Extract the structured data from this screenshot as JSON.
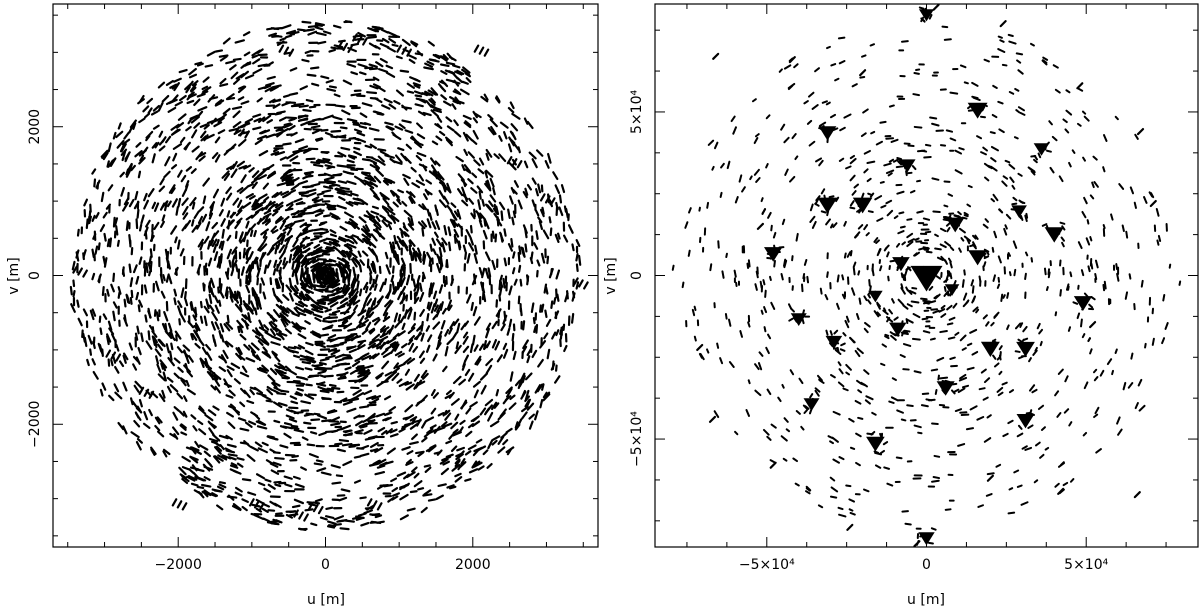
{
  "chart_data": [
    {
      "type": "scatter",
      "title": "",
      "xlabel": "u [m]",
      "ylabel": "v [m]",
      "xlim": [
        -3700,
        3700
      ],
      "ylim": [
        -3650,
        3650
      ],
      "x_ticks": [
        -2000,
        0,
        2000
      ],
      "x_tick_labels": [
        "−2000",
        "0",
        "2000"
      ],
      "y_ticks": [
        -2000,
        0,
        2000
      ],
      "y_tick_labels": [
        "−2000",
        "0",
        "2000"
      ],
      "grid": false,
      "description": "uv-coverage tracks: thousands of short dashes, densest at center, sparse toward edges",
      "sample_points": [
        [
          -3400,
          80
        ],
        [
          3400,
          -80
        ],
        [
          -2950,
          -1050
        ],
        [
          2950,
          1050
        ],
        [
          -2050,
          -3050
        ],
        [
          2050,
          3050
        ],
        [
          -1000,
          -3050
        ],
        [
          1000,
          3050
        ],
        [
          -200,
          -3100
        ],
        [
          200,
          3100
        ],
        [
          -2700,
          1000
        ],
        [
          2700,
          -1000
        ],
        [
          -2500,
          -1550
        ],
        [
          2500,
          1550
        ],
        [
          -1200,
          1950
        ],
        [
          1200,
          -1950
        ],
        [
          -600,
          3050
        ],
        [
          600,
          -3050
        ],
        [
          400,
          3200
        ],
        [
          -400,
          -3200
        ]
      ]
    },
    {
      "type": "scatter",
      "title": "",
      "xlabel": "u [m]",
      "ylabel": "v [m]",
      "xlim": [
        -85000,
        85000
      ],
      "ylim": [
        -83000,
        83000
      ],
      "x_ticks": [
        -50000,
        0,
        50000
      ],
      "x_tick_labels": [
        "−5×10⁴",
        "0",
        "5×10⁴"
      ],
      "y_ticks": [
        -50000,
        0,
        50000
      ],
      "y_tick_labels": [
        "−5×10⁴",
        "0",
        "5×10⁴"
      ],
      "grid": false,
      "description": "uv-coverage with dense triangular clusters near center and sparse short tracks outward",
      "clusters": [
        [
          0,
          0
        ],
        [
          16000,
          51000
        ],
        [
          -31000,
          44000
        ],
        [
          36000,
          39000
        ],
        [
          -48000,
          7000
        ],
        [
          49000,
          -8000
        ],
        [
          -36000,
          -39000
        ],
        [
          31000,
          -44000
        ],
        [
          -16000,
          -51000
        ],
        [
          -6000,
          34000
        ],
        [
          6000,
          -34000
        ],
        [
          -20000,
          22000
        ],
        [
          20000,
          -22000
        ],
        [
          -29000,
          -20000
        ],
        [
          29000,
          20000
        ],
        [
          -9000,
          -16000
        ],
        [
          9000,
          16000
        ],
        [
          -16000,
          -6000
        ],
        [
          16000,
          6000
        ],
        [
          -8000,
          4000
        ],
        [
          8000,
          -4000
        ],
        [
          -31000,
          22000
        ],
        [
          31000,
          -22000
        ],
        [
          -40000,
          -13000
        ],
        [
          40000,
          13000
        ],
        [
          0,
          80000
        ],
        [
          0,
          -80000
        ]
      ],
      "sample_points": [
        [
          -66000,
          67000
        ],
        [
          66000,
          -67000
        ],
        [
          -42000,
          66000
        ],
        [
          42000,
          -66000
        ],
        [
          -20000,
          62000
        ],
        [
          20000,
          -62000
        ],
        [
          24000,
          77000
        ],
        [
          -24000,
          -77000
        ],
        [
          -71000,
          -22000
        ],
        [
          71000,
          22000
        ],
        [
          -67000,
          -44000
        ],
        [
          67000,
          44000
        ],
        [
          -52000,
          15000
        ],
        [
          52000,
          -15000
        ],
        [
          48000,
          58000
        ],
        [
          -48000,
          -58000
        ],
        [
          3000,
          82000
        ],
        [
          -3000,
          -82000
        ]
      ]
    }
  ]
}
